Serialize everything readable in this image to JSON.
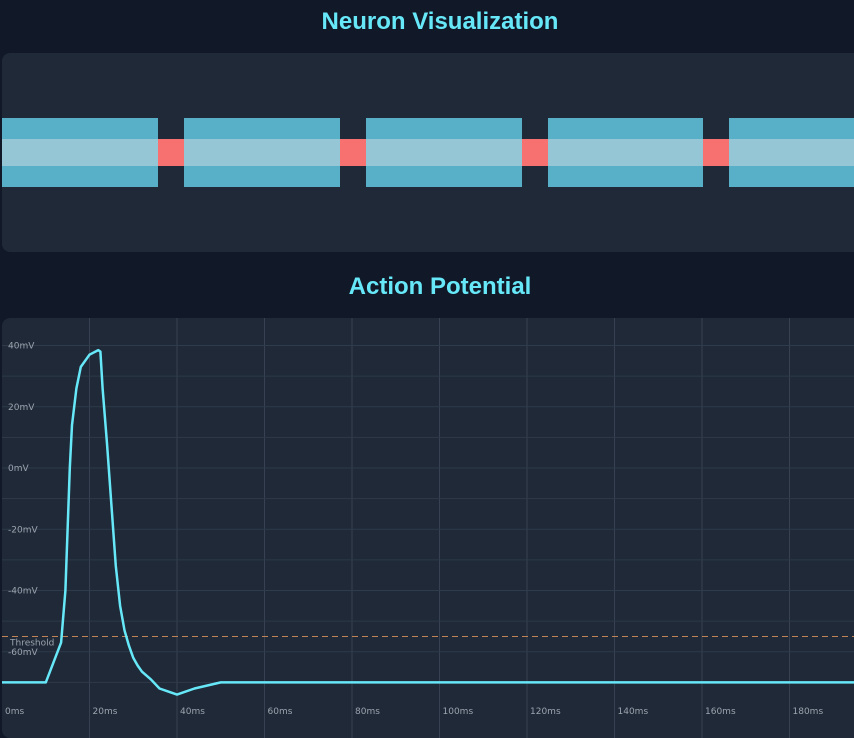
{
  "neuron": {
    "title": "Neuron Visualization",
    "colors": {
      "sheath": "#57b0c7",
      "axon_core": "#94c6d6",
      "node": "#f87171"
    }
  },
  "chart": {
    "title": "Action Potential"
  },
  "chart_data": {
    "type": "line",
    "title": "Action Potential",
    "xlabel": "",
    "ylabel": "",
    "x_unit": "ms",
    "y_unit": "mV",
    "xlim": [
      0,
      200
    ],
    "ylim": [
      -70,
      48
    ],
    "grid": true,
    "x_ticks": [
      "0ms",
      "20ms",
      "40ms",
      "60ms",
      "80ms",
      "100ms",
      "120ms",
      "140ms",
      "160ms",
      "180ms"
    ],
    "y_ticks": [
      "40mV",
      "20mV",
      "0mV",
      "-20mV",
      "-40mV",
      "-60mV"
    ],
    "threshold": {
      "label": "Threshold",
      "value": -55,
      "color": "#c08457"
    },
    "line_color": "#67e8f9",
    "series": [
      {
        "x": [
          0,
          10,
          13.5,
          14.5,
          15,
          15.5,
          16,
          17,
          18,
          20,
          22,
          22.5,
          23,
          24,
          25,
          26,
          27,
          28,
          29,
          30,
          31,
          32,
          34,
          36,
          38,
          40,
          44,
          50,
          200
        ],
        "y": [
          -70,
          -70,
          -57,
          -40,
          -20,
          0,
          14,
          26,
          33,
          37,
          38.5,
          38,
          26,
          8,
          -12,
          -32,
          -45,
          -53,
          -58,
          -62,
          -64.5,
          -66.5,
          -69,
          -72,
          -73,
          -74,
          -72,
          -70,
          -70
        ]
      }
    ]
  }
}
